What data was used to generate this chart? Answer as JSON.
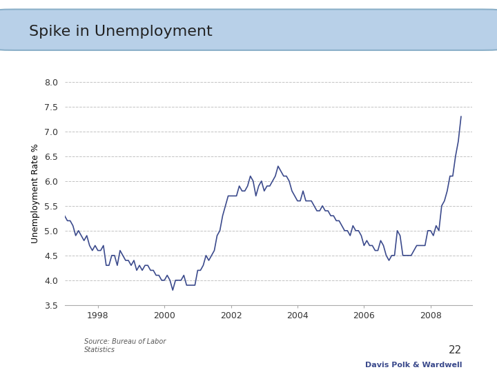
{
  "title": "Spike in Unemployment",
  "ylabel": "Unemployment Rate %",
  "source": "Source: Bureau of Labor\nStatistics",
  "page_number": "22",
  "line_color": "#3B4A8C",
  "background_color": "#FFFFFF",
  "title_box_color": "#B8D0E8",
  "title_box_edge_color": "#8AAFC8",
  "ylim": [
    3.5,
    8.0
  ],
  "yticks": [
    3.5,
    4.0,
    4.5,
    5.0,
    5.5,
    6.0,
    6.5,
    7.0,
    7.5,
    8.0
  ],
  "grid_color": "#BBBBBB",
  "dpw_color": "#3B4A8C",
  "monthly_data": [
    5.3,
    5.2,
    5.2,
    5.1,
    4.9,
    5.0,
    4.9,
    4.8,
    4.9,
    4.7,
    4.6,
    4.7,
    4.6,
    4.6,
    4.7,
    4.3,
    4.3,
    4.5,
    4.5,
    4.3,
    4.6,
    4.5,
    4.4,
    4.4,
    4.3,
    4.4,
    4.2,
    4.3,
    4.2,
    4.3,
    4.3,
    4.2,
    4.2,
    4.1,
    4.1,
    4.0,
    4.0,
    4.1,
    4.0,
    3.8,
    4.0,
    4.0,
    4.0,
    4.1,
    3.9,
    3.9,
    3.9,
    3.9,
    4.2,
    4.2,
    4.3,
    4.5,
    4.4,
    4.5,
    4.6,
    4.9,
    5.0,
    5.3,
    5.5,
    5.7,
    5.7,
    5.7,
    5.7,
    5.9,
    5.8,
    5.8,
    5.9,
    6.1,
    6.0,
    5.7,
    5.9,
    6.0,
    5.8,
    5.9,
    5.9,
    6.0,
    6.1,
    6.3,
    6.2,
    6.1,
    6.1,
    6.0,
    5.8,
    5.7,
    5.6,
    5.6,
    5.8,
    5.6,
    5.6,
    5.6,
    5.5,
    5.4,
    5.4,
    5.5,
    5.4,
    5.4,
    5.3,
    5.3,
    5.2,
    5.2,
    5.1,
    5.0,
    5.0,
    4.9,
    5.1,
    5.0,
    5.0,
    4.9,
    4.7,
    4.8,
    4.7,
    4.7,
    4.6,
    4.6,
    4.8,
    4.7,
    4.5,
    4.4,
    4.5,
    4.5,
    5.0,
    4.9,
    4.5,
    4.5,
    4.5,
    4.5,
    4.6,
    4.7,
    4.7,
    4.7,
    4.7,
    5.0,
    5.0,
    4.9,
    5.1,
    5.0,
    5.5,
    5.6,
    5.8,
    6.1,
    6.1,
    6.5,
    6.8,
    7.3
  ],
  "xtick_years": [
    1998,
    2000,
    2002,
    2004,
    2006,
    2008
  ],
  "line_width": 1.2
}
